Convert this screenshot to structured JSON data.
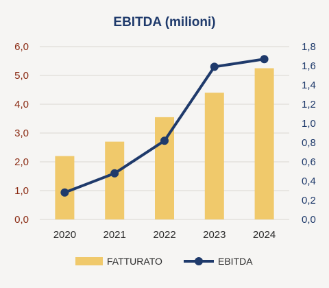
{
  "chart_data": {
    "type": "bar+line",
    "title": "EBITDA (milioni)",
    "categories": [
      "2020",
      "2021",
      "2022",
      "2023",
      "2024"
    ],
    "series": [
      {
        "name": "FATTURATO",
        "type": "bar",
        "axis": "left",
        "values": [
          2.2,
          2.7,
          3.55,
          4.4,
          5.25
        ]
      },
      {
        "name": "EBITDA",
        "type": "line",
        "axis": "right",
        "values": [
          0.28,
          0.48,
          0.82,
          1.59,
          1.67
        ]
      }
    ],
    "y_left": {
      "range": [
        0,
        6
      ],
      "ticks": [
        "0,0",
        "1,0",
        "2,0",
        "3,0",
        "4,0",
        "5,0",
        "6,0"
      ]
    },
    "y_right": {
      "range": [
        0,
        1.8
      ],
      "ticks": [
        "0,0",
        "0,2",
        "0,4",
        "0,6",
        "0,8",
        "1,0",
        "1,2",
        "1,4",
        "1,6",
        "1,8"
      ]
    },
    "grid": true,
    "legend_position": "bottom",
    "colors": {
      "bar": "#f0c96b",
      "line": "#1f3a6b",
      "left_axis": "#8a2a12",
      "right_axis": "#1f3a6b",
      "grid": "#d9d6d0"
    }
  }
}
